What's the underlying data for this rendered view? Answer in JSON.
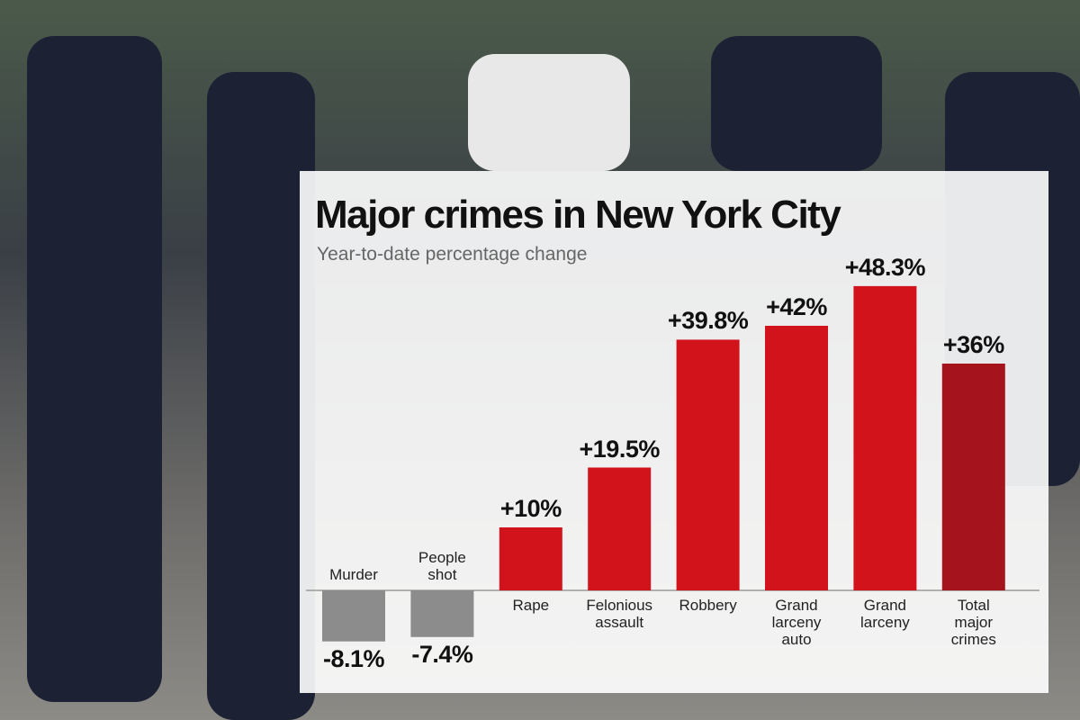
{
  "chart_data": {
    "type": "bar",
    "title": "Major crimes in New York City",
    "subtitle": "Year-to-date percentage change",
    "categories": [
      "Murder",
      "People shot",
      "Rape",
      "Felonious assault",
      "Robbery",
      "Grand larceny auto",
      "Grand larceny",
      "Total major crimes"
    ],
    "values": [
      -8.1,
      -7.4,
      10,
      19.5,
      39.8,
      42,
      48.3,
      36
    ],
    "value_labels": [
      "-8.1%",
      "-7.4%",
      "+10%",
      "+19.5%",
      "+39.8%",
      "+42%",
      "+48.3%",
      "+36%"
    ],
    "colors": [
      "#8c8c8c",
      "#8c8c8c",
      "#d3131c",
      "#d3131c",
      "#d3131c",
      "#d3131c",
      "#d3131c",
      "#a5141c"
    ]
  }
}
